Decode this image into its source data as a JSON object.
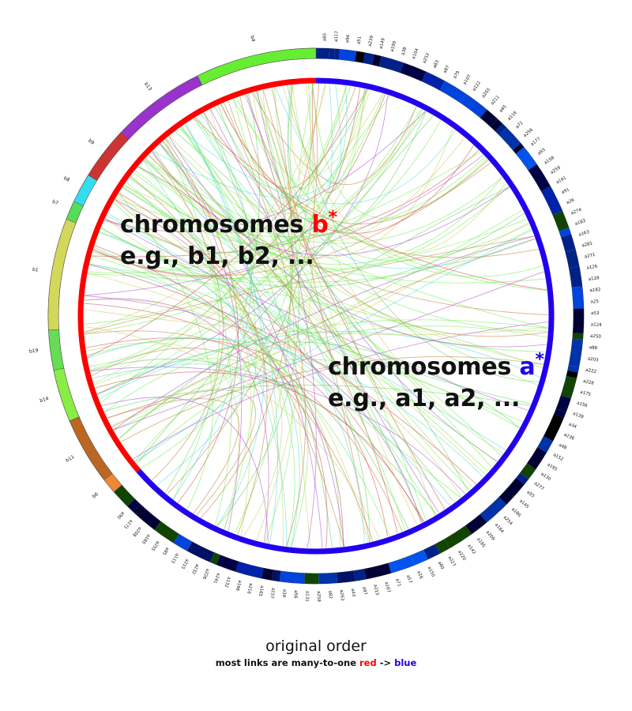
{
  "diagram": {
    "label_b": {
      "prefix": "chromosomes ",
      "letter": "b",
      "star": "*",
      "examples": "e.g., b1, b2, ..."
    },
    "label_a": {
      "prefix": "chromosomes ",
      "letter": "a",
      "star": "*",
      "examples": "e.g., a1, a2, ..."
    },
    "caption": {
      "title": "original order",
      "sub_prefix": "most links are many-to-one ",
      "sub_red": "red",
      "sub_arrow": " -> ",
      "sub_blue": "blue"
    },
    "colors": {
      "red": "#ff0000",
      "blue": "#2200ee"
    },
    "b_segments": [
      {
        "name": "b4",
        "color": "#66ee33",
        "from": 0,
        "to": 0.127
      },
      {
        "name": "b13",
        "color": "#9933cc",
        "from": 0.127,
        "to": 0.226
      },
      {
        "name": "b9",
        "color": "#cc3333",
        "from": 0.226,
        "to": 0.282
      },
      {
        "name": "b8",
        "color": "#33ddee",
        "from": 0.282,
        "to": 0.313
      },
      {
        "name": "b7",
        "color": "#55dd55",
        "from": 0.313,
        "to": 0.333
      },
      {
        "name": "b1",
        "color": "#d4d85a",
        "from": 0.333,
        "to": 0.45
      },
      {
        "name": "b19",
        "color": "#66dd55",
        "from": 0.45,
        "to": 0.492
      },
      {
        "name": "b14",
        "color": "#88ee44",
        "from": 0.492,
        "to": 0.547
      },
      {
        "name": "b11",
        "color": "#bb6622",
        "from": 0.547,
        "to": 0.618
      },
      {
        "name": "b6",
        "color": "#ee8833",
        "from": 0.618,
        "to": 0.634
      }
    ],
    "a_labels": [
      "a65",
      "a117",
      "a94",
      "a51",
      "a239",
      "a149",
      "a190",
      "a38",
      "a104",
      "a252",
      "a83",
      "a87",
      "a79",
      "a107",
      "a122",
      "a203",
      "a211",
      "a45",
      "a116",
      "a72",
      "a256",
      "a177",
      "a93",
      "a158",
      "a259",
      "a191",
      "a91",
      "a26",
      "a274",
      "a183",
      "a163",
      "a281",
      "a271",
      "a126",
      "a128",
      "a182",
      "a25",
      "a53",
      "a124",
      "a250",
      "a88",
      "a203",
      "a222",
      "a228",
      "a175",
      "a156",
      "a139",
      "a34",
      "a236",
      "a48",
      "a152",
      "a195",
      "a130",
      "a277",
      "a55",
      "a145",
      "a186",
      "a254",
      "a184",
      "a209",
      "a185",
      "a142",
      "a220",
      "a227",
      "a60",
      "a150",
      "a16",
      "a57",
      "a71",
      "a167",
      "a213",
      "a97",
      "a43",
      "a263",
      "a82",
      "a258",
      "a131",
      "a56",
      "a39",
      "a157",
      "a165",
      "a216",
      "a166",
      "a132",
      "a241",
      "a226",
      "a232",
      "a215",
      "a115",
      "a95",
      "a255",
      "a185",
      "a208",
      "a171",
      "a90"
    ],
    "b_labels": [
      "b4",
      "b13",
      "b9",
      "b8",
      "b7",
      "b1",
      "b19",
      "b14",
      "b11",
      "b6"
    ]
  }
}
